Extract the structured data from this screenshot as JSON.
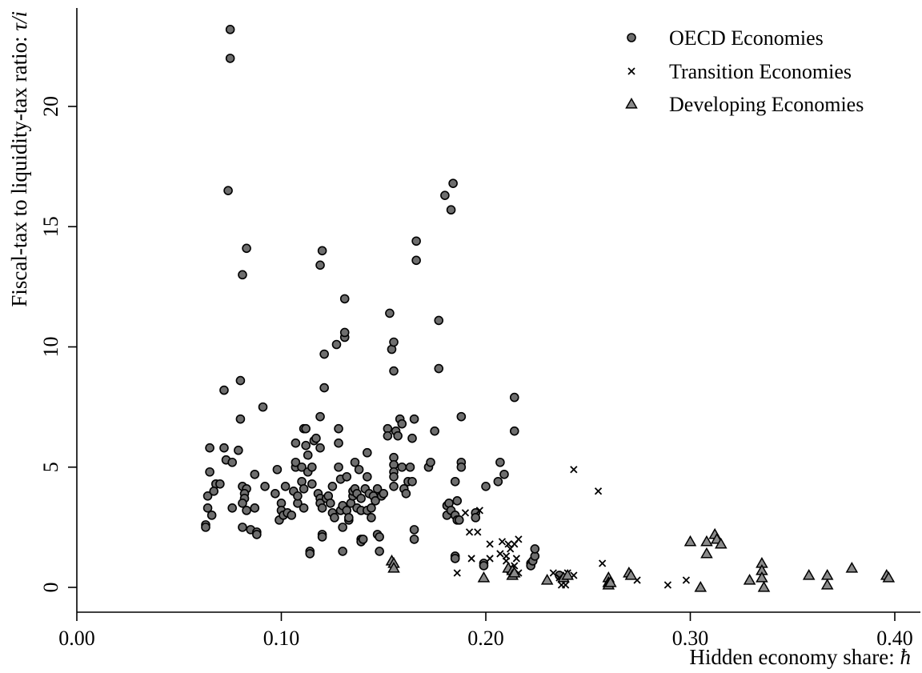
{
  "chart_data": {
    "type": "scatter",
    "xlabel": "Hidden economy share: ħ",
    "xlabel_text": "Hidden economy share: ",
    "xlabel_symbol": "ħ",
    "ylabel": "Fiscal-tax to liquidity-tax ratio: τ/i",
    "ylabel_text": "Fiscal-tax to liquidity-tax ratio: ",
    "ylabel_symbol": "τ/i",
    "xlim": [
      0.0,
      0.42
    ],
    "ylim": [
      -1.0,
      23.5
    ],
    "x_ticks": [
      0.0,
      0.1,
      0.2,
      0.3,
      0.4
    ],
    "x_tick_labels": [
      "0.00",
      "0.10",
      "0.20",
      "0.30",
      "0.40"
    ],
    "y_ticks": [
      0,
      5,
      10,
      15,
      20
    ],
    "y_tick_labels": [
      "0",
      "5",
      "10",
      "15",
      "20"
    ],
    "legend_position": "top-right",
    "grid": false,
    "series": [
      {
        "name": "OECD Economies",
        "marker": "circle",
        "color": "#6e6e6e",
        "points": [
          [
            0.075,
            23.2
          ],
          [
            0.075,
            22.0
          ],
          [
            0.074,
            16.5
          ],
          [
            0.083,
            14.1
          ],
          [
            0.081,
            13.0
          ],
          [
            0.072,
            8.2
          ],
          [
            0.08,
            8.6
          ],
          [
            0.08,
            7.0
          ],
          [
            0.065,
            5.8
          ],
          [
            0.072,
            5.8
          ],
          [
            0.073,
            5.3
          ],
          [
            0.076,
            5.2
          ],
          [
            0.079,
            5.7
          ],
          [
            0.068,
            4.3
          ],
          [
            0.07,
            4.3
          ],
          [
            0.065,
            4.8
          ],
          [
            0.064,
            3.8
          ],
          [
            0.064,
            3.3
          ],
          [
            0.063,
            2.6
          ],
          [
            0.063,
            2.5
          ],
          [
            0.067,
            4.0
          ],
          [
            0.066,
            3.0
          ],
          [
            0.076,
            3.3
          ],
          [
            0.081,
            4.2
          ],
          [
            0.083,
            4.1
          ],
          [
            0.082,
            3.9
          ],
          [
            0.082,
            3.7
          ],
          [
            0.081,
            3.5
          ],
          [
            0.083,
            3.2
          ],
          [
            0.081,
            2.5
          ],
          [
            0.085,
            2.4
          ],
          [
            0.088,
            2.3
          ],
          [
            0.088,
            2.2
          ],
          [
            0.087,
            3.3
          ],
          [
            0.087,
            4.7
          ],
          [
            0.091,
            7.5
          ],
          [
            0.092,
            4.2
          ],
          [
            0.097,
            3.9
          ],
          [
            0.098,
            4.9
          ],
          [
            0.1,
            3.5
          ],
          [
            0.1,
            3.2
          ],
          [
            0.099,
            2.8
          ],
          [
            0.101,
            3.0
          ],
          [
            0.103,
            3.1
          ],
          [
            0.102,
            4.2
          ],
          [
            0.105,
            3.0
          ],
          [
            0.106,
            4.0
          ],
          [
            0.107,
            5.0
          ],
          [
            0.107,
            5.2
          ],
          [
            0.107,
            6.0
          ],
          [
            0.108,
            3.5
          ],
          [
            0.108,
            3.8
          ],
          [
            0.111,
            6.6
          ],
          [
            0.112,
            6.6
          ],
          [
            0.112,
            5.9
          ],
          [
            0.113,
            5.5
          ],
          [
            0.11,
            5.0
          ],
          [
            0.11,
            4.4
          ],
          [
            0.111,
            4.1
          ],
          [
            0.111,
            3.3
          ],
          [
            0.113,
            4.8
          ],
          [
            0.115,
            5.0
          ],
          [
            0.116,
            6.1
          ],
          [
            0.117,
            6.2
          ],
          [
            0.115,
            4.3
          ],
          [
            0.114,
            1.5
          ],
          [
            0.114,
            1.4
          ],
          [
            0.118,
            3.9
          ],
          [
            0.119,
            3.7
          ],
          [
            0.119,
            3.5
          ],
          [
            0.12,
            3.3
          ],
          [
            0.12,
            2.2
          ],
          [
            0.12,
            2.1
          ],
          [
            0.119,
            5.8
          ],
          [
            0.119,
            7.1
          ],
          [
            0.119,
            13.4
          ],
          [
            0.12,
            14.0
          ],
          [
            0.121,
            9.7
          ],
          [
            0.121,
            8.3
          ],
          [
            0.122,
            3.7
          ],
          [
            0.123,
            3.8
          ],
          [
            0.124,
            3.5
          ],
          [
            0.125,
            3.1
          ],
          [
            0.125,
            4.2
          ],
          [
            0.126,
            2.9
          ],
          [
            0.127,
            10.1
          ],
          [
            0.128,
            6.6
          ],
          [
            0.128,
            6.0
          ],
          [
            0.128,
            5.0
          ],
          [
            0.129,
            4.5
          ],
          [
            0.129,
            3.2
          ],
          [
            0.13,
            3.4
          ],
          [
            0.13,
            2.5
          ],
          [
            0.13,
            1.5
          ],
          [
            0.131,
            10.4
          ],
          [
            0.131,
            10.6
          ],
          [
            0.131,
            12.0
          ],
          [
            0.132,
            4.6
          ],
          [
            0.132,
            3.2
          ],
          [
            0.133,
            2.8
          ],
          [
            0.133,
            2.9
          ],
          [
            0.134,
            3.5
          ],
          [
            0.135,
            3.8
          ],
          [
            0.135,
            4.0
          ],
          [
            0.136,
            5.2
          ],
          [
            0.136,
            4.1
          ],
          [
            0.137,
            3.9
          ],
          [
            0.137,
            3.3
          ],
          [
            0.138,
            4.9
          ],
          [
            0.139,
            3.7
          ],
          [
            0.139,
            3.2
          ],
          [
            0.139,
            2.0
          ],
          [
            0.139,
            1.9
          ],
          [
            0.14,
            2.0
          ],
          [
            0.141,
            4.1
          ],
          [
            0.142,
            5.6
          ],
          [
            0.142,
            4.6
          ],
          [
            0.142,
            3.2
          ],
          [
            0.143,
            3.9
          ],
          [
            0.144,
            3.3
          ],
          [
            0.144,
            2.9
          ],
          [
            0.145,
            3.8
          ],
          [
            0.146,
            3.6
          ],
          [
            0.147,
            4.1
          ],
          [
            0.147,
            2.2
          ],
          [
            0.148,
            1.5
          ],
          [
            0.148,
            2.1
          ],
          [
            0.149,
            3.8
          ],
          [
            0.15,
            3.9
          ],
          [
            0.152,
            6.6
          ],
          [
            0.152,
            6.3
          ],
          [
            0.153,
            11.4
          ],
          [
            0.154,
            9.9
          ],
          [
            0.155,
            10.2
          ],
          [
            0.155,
            9.0
          ],
          [
            0.155,
            5.4
          ],
          [
            0.155,
            5.1
          ],
          [
            0.155,
            4.8
          ],
          [
            0.155,
            4.6
          ],
          [
            0.155,
            4.2
          ],
          [
            0.156,
            6.5
          ],
          [
            0.157,
            6.3
          ],
          [
            0.158,
            7.0
          ],
          [
            0.159,
            6.8
          ],
          [
            0.159,
            5.0
          ],
          [
            0.16,
            4.1
          ],
          [
            0.161,
            3.9
          ],
          [
            0.162,
            4.4
          ],
          [
            0.163,
            5.0
          ],
          [
            0.164,
            4.4
          ],
          [
            0.164,
            6.2
          ],
          [
            0.165,
            7.0
          ],
          [
            0.165,
            2.0
          ],
          [
            0.165,
            2.4
          ],
          [
            0.166,
            14.4
          ],
          [
            0.166,
            13.6
          ],
          [
            0.172,
            5.0
          ],
          [
            0.173,
            5.2
          ],
          [
            0.175,
            6.5
          ],
          [
            0.177,
            11.1
          ],
          [
            0.177,
            9.1
          ],
          [
            0.18,
            16.3
          ],
          [
            0.181,
            3.4
          ],
          [
            0.181,
            3.0
          ],
          [
            0.182,
            3.5
          ],
          [
            0.183,
            3.2
          ],
          [
            0.183,
            15.7
          ],
          [
            0.184,
            16.8
          ],
          [
            0.185,
            4.4
          ],
          [
            0.185,
            3.0
          ],
          [
            0.186,
            3.6
          ],
          [
            0.186,
            2.8
          ],
          [
            0.185,
            1.3
          ],
          [
            0.185,
            1.2
          ],
          [
            0.187,
            2.8
          ],
          [
            0.188,
            7.1
          ],
          [
            0.188,
            5.2
          ],
          [
            0.188,
            5.0
          ],
          [
            0.195,
            3.1
          ],
          [
            0.195,
            2.9
          ],
          [
            0.199,
            1.0
          ],
          [
            0.199,
            0.9
          ],
          [
            0.2,
            4.2
          ],
          [
            0.206,
            4.4
          ],
          [
            0.207,
            5.2
          ],
          [
            0.209,
            4.7
          ],
          [
            0.212,
            0.7
          ],
          [
            0.214,
            7.9
          ],
          [
            0.214,
            6.5
          ],
          [
            0.222,
            1.0
          ],
          [
            0.222,
            0.9
          ],
          [
            0.223,
            1.1
          ],
          [
            0.224,
            1.3
          ],
          [
            0.224,
            1.6
          ],
          [
            0.236,
            0.5
          ]
        ]
      },
      {
        "name": "Transition Economies",
        "marker": "x",
        "color": "#000000",
        "points": [
          [
            0.243,
            4.9
          ],
          [
            0.255,
            4.0
          ],
          [
            0.197,
            3.2
          ],
          [
            0.19,
            3.1
          ],
          [
            0.192,
            2.3
          ],
          [
            0.196,
            2.3
          ],
          [
            0.202,
            1.8
          ],
          [
            0.208,
            1.9
          ],
          [
            0.211,
            1.8
          ],
          [
            0.216,
            2.0
          ],
          [
            0.214,
            1.8
          ],
          [
            0.207,
            1.4
          ],
          [
            0.202,
            1.2
          ],
          [
            0.21,
            1.3
          ],
          [
            0.212,
            1.6
          ],
          [
            0.215,
            1.2
          ],
          [
            0.193,
            1.2
          ],
          [
            0.186,
            0.6
          ],
          [
            0.21,
            1.1
          ],
          [
            0.214,
            0.9
          ],
          [
            0.216,
            0.6
          ],
          [
            0.233,
            0.6
          ],
          [
            0.236,
            0.4
          ],
          [
            0.24,
            0.6
          ],
          [
            0.243,
            0.5
          ],
          [
            0.237,
            0.1
          ],
          [
            0.239,
            0.1
          ],
          [
            0.257,
            1.0
          ],
          [
            0.274,
            0.3
          ],
          [
            0.289,
            0.1
          ],
          [
            0.298,
            0.3
          ]
        ]
      },
      {
        "name": "Developing Economies",
        "marker": "triangle",
        "color": "#8a8a8a",
        "points": [
          [
            0.154,
            1.1
          ],
          [
            0.155,
            1.0
          ],
          [
            0.155,
            0.8
          ],
          [
            0.199,
            0.4
          ],
          [
            0.211,
            0.8
          ],
          [
            0.213,
            0.7
          ],
          [
            0.213,
            0.5
          ],
          [
            0.214,
            0.6
          ],
          [
            0.23,
            0.3
          ],
          [
            0.238,
            0.4
          ],
          [
            0.24,
            0.5
          ],
          [
            0.26,
            0.4
          ],
          [
            0.26,
            0.2
          ],
          [
            0.26,
            0.1
          ],
          [
            0.261,
            0.2
          ],
          [
            0.27,
            0.6
          ],
          [
            0.271,
            0.5
          ],
          [
            0.3,
            1.9
          ],
          [
            0.305,
            0.0
          ],
          [
            0.308,
            1.9
          ],
          [
            0.308,
            1.4
          ],
          [
            0.312,
            2.2
          ],
          [
            0.313,
            2.0
          ],
          [
            0.315,
            1.8
          ],
          [
            0.329,
            0.3
          ],
          [
            0.335,
            1.0
          ],
          [
            0.335,
            0.7
          ],
          [
            0.335,
            0.4
          ],
          [
            0.336,
            0.0
          ],
          [
            0.358,
            0.5
          ],
          [
            0.367,
            0.5
          ],
          [
            0.367,
            0.1
          ],
          [
            0.379,
            0.8
          ],
          [
            0.396,
            0.5
          ],
          [
            0.397,
            0.4
          ]
        ]
      }
    ]
  }
}
